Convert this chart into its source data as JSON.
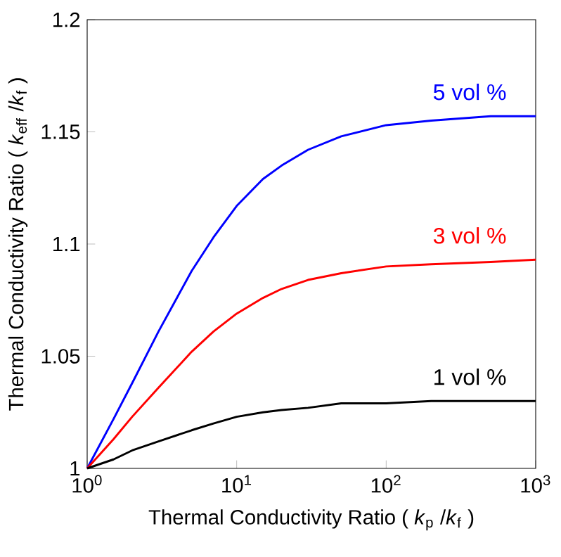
{
  "chart_data": {
    "type": "line",
    "xlabel": "Thermal Conductivity Ratio ( *k*$_{p}$ /*k*$_{f}$ )",
    "ylabel": "Thermal Conductivity Ratio ( *k*$_{eff}$ /*k*$_{f}$ )",
    "log": "x",
    "xlim": [
      1,
      1000
    ],
    "ylim": [
      1,
      1.2
    ],
    "xticks": [
      {
        "value": 1,
        "label": "10$^{0}$"
      },
      {
        "value": 10,
        "label": "10$^{1}$"
      },
      {
        "value": 100,
        "label": "10$^{2}$"
      },
      {
        "value": 1000,
        "label": "10$^{3}$"
      }
    ],
    "yticks": [
      1,
      1.05,
      1.1,
      1.15,
      1.2
    ],
    "x": [
      1,
      1.5,
      2,
      3,
      5,
      7,
      10,
      15,
      20,
      30,
      50,
      100,
      200,
      500,
      1000
    ],
    "series": [
      {
        "name": "5 vol %",
        "color": "#0000ff",
        "values": [
          1,
          1.022,
          1.038,
          1.061,
          1.088,
          1.103,
          1.117,
          1.129,
          1.135,
          1.142,
          1.148,
          1.153,
          1.155,
          1.157,
          1.157
        ]
      },
      {
        "name": "3 vol %",
        "color": "#ff0000",
        "values": [
          1,
          1.013,
          1.023,
          1.036,
          1.052,
          1.061,
          1.069,
          1.076,
          1.08,
          1.084,
          1.087,
          1.09,
          1.091,
          1.092,
          1.093
        ]
      },
      {
        "name": "1 vol %",
        "color": "#000000",
        "values": [
          1,
          1.004,
          1.008,
          1.012,
          1.017,
          1.02,
          1.023,
          1.025,
          1.026,
          1.027,
          1.029,
          1.029,
          1.03,
          1.03,
          1.03
        ]
      }
    ]
  }
}
